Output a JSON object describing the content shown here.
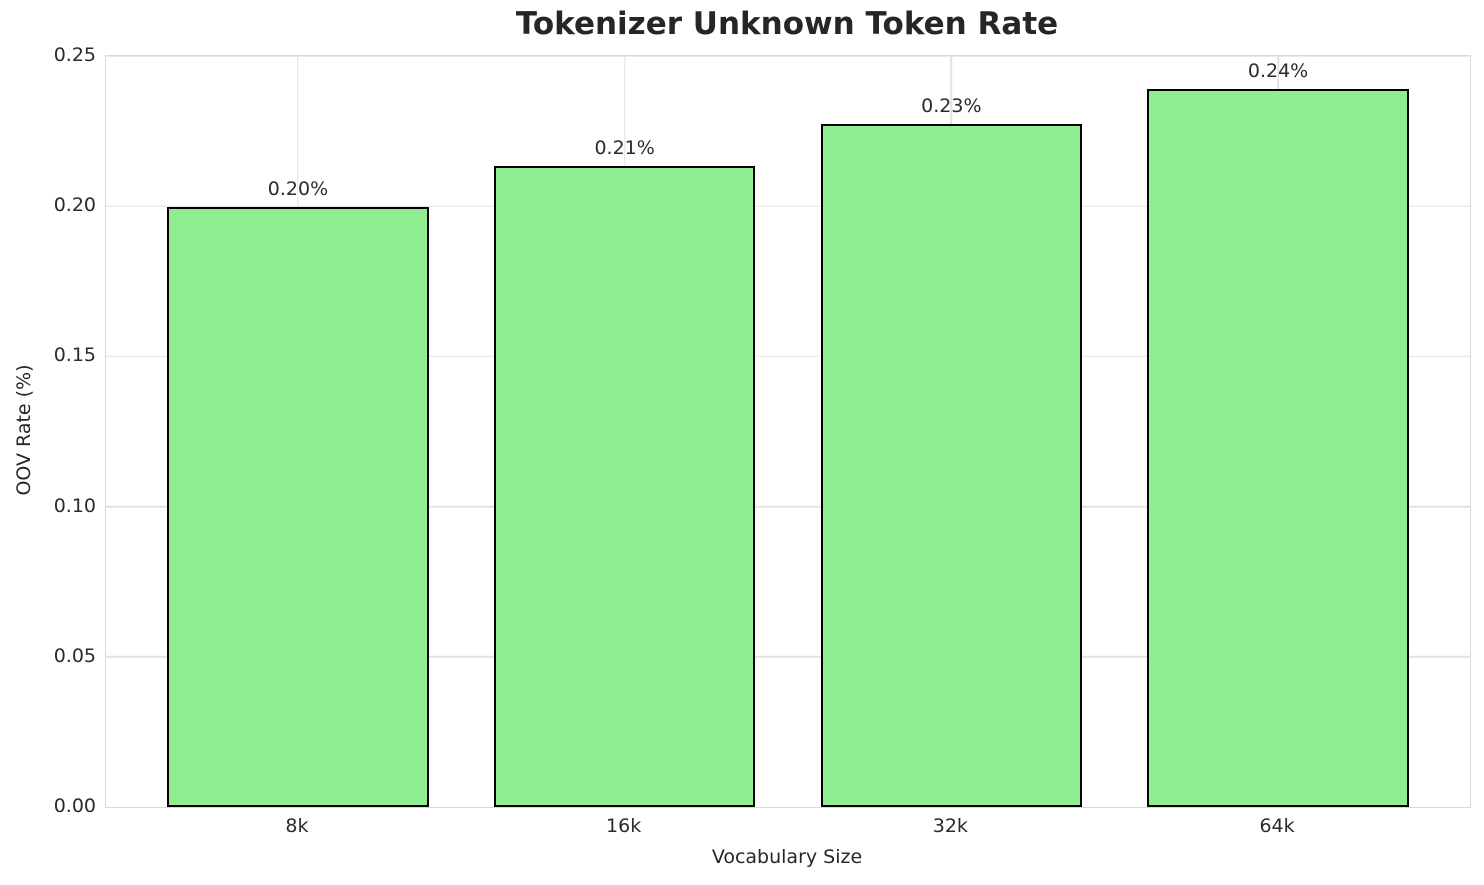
{
  "chart_data": {
    "type": "bar",
    "title": "Tokenizer Unknown Token Rate",
    "xlabel": "Vocabulary Size",
    "ylabel": "OOV Rate (%)",
    "categories": [
      "8k",
      "16k",
      "32k",
      "64k"
    ],
    "values": [
      0.1997,
      0.2134,
      0.2274,
      0.239
    ],
    "bar_labels": [
      "0.20%",
      "0.21%",
      "0.23%",
      "0.24%"
    ],
    "yticks": [
      "0.00",
      "0.05",
      "0.10",
      "0.15",
      "0.20",
      "0.25"
    ],
    "ylim": [
      0,
      0.25
    ],
    "grid": true,
    "legend": "none",
    "colors": {
      "bar_fill": "#90EE90",
      "bar_edge": "#000000",
      "grid_line": "#e2e2e2",
      "spine": "#d8d8d8",
      "text": "#262626"
    }
  }
}
